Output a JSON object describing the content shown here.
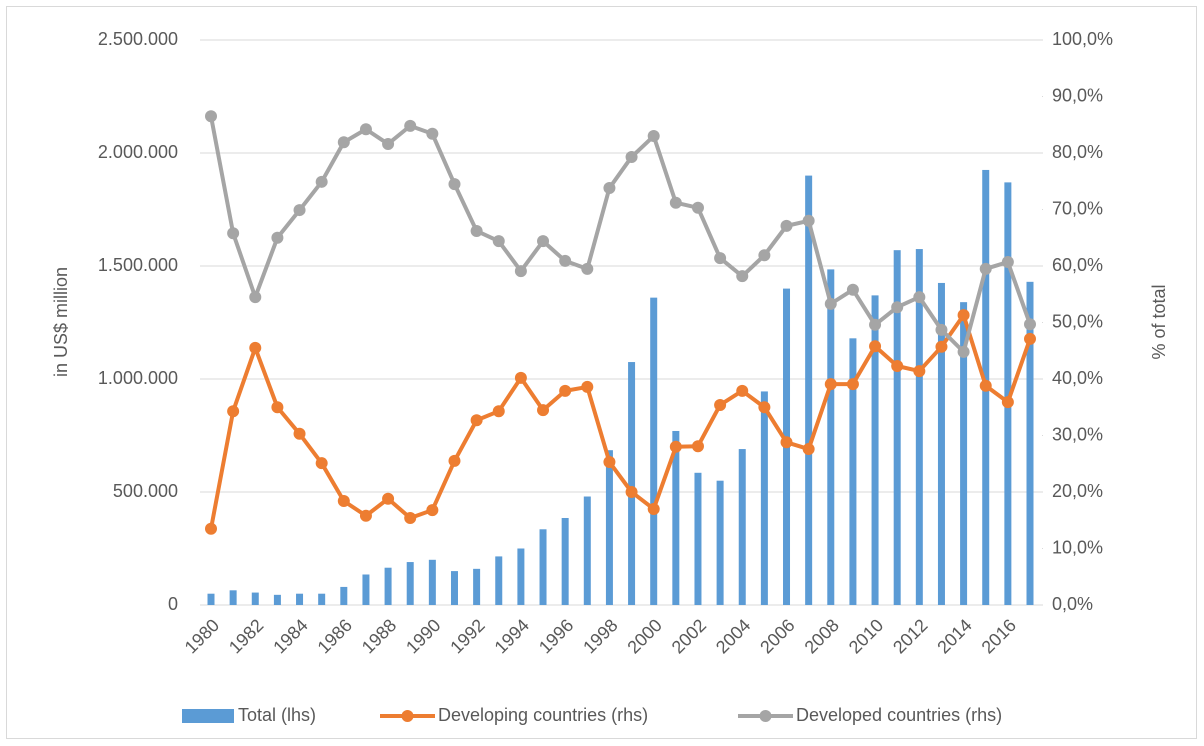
{
  "chart_data": {
    "type": "combo",
    "categories": [
      "1980",
      null,
      "1982",
      null,
      "1984",
      null,
      "1986",
      null,
      "1988",
      null,
      "1990",
      null,
      "1992",
      null,
      "1994",
      null,
      "1996",
      null,
      "1998",
      null,
      "2000",
      null,
      "2002",
      null,
      "2004",
      null,
      "2006",
      null,
      "2008",
      null,
      "2010",
      null,
      "2012",
      null,
      "2014",
      null,
      "2016",
      null
    ],
    "y_label": "in US$ million",
    "y2_label": "% of total",
    "ylim": [
      0,
      2500000
    ],
    "yticks": [
      0,
      {
        "value": 500000,
        "label": "500.000"
      },
      {
        "value": 1000000,
        "label": "1.000.000"
      },
      {
        "value": 1500000,
        "label": "1.500.000"
      },
      {
        "value": 2000000,
        "label": "2.000.000"
      },
      {
        "value": 2500000,
        "label": "2.500.000"
      }
    ],
    "y2lim": [
      0,
      100
    ],
    "y2ticks": [
      {
        "value": 0,
        "label": "0,0%"
      },
      {
        "value": 10,
        "label": "10,0%"
      },
      {
        "value": 20,
        "label": "20,0%"
      },
      {
        "value": 30,
        "label": "30,0%"
      },
      {
        "value": 40,
        "label": "40,0%"
      },
      {
        "value": 50,
        "label": "50,0%"
      },
      {
        "value": 60,
        "label": "60,0%"
      },
      {
        "value": 70,
        "label": "70,0%"
      },
      {
        "value": 80,
        "label": "80,0%"
      },
      {
        "value": 90,
        "label": "90,0%"
      },
      {
        "value": 100,
        "label": "100,0%"
      }
    ],
    "grid": true,
    "legend": "bottom",
    "series": [
      {
        "name": "Total (lhs)",
        "type": "bar",
        "axis": "y",
        "color": "#5b9bd5",
        "values": [
          50000,
          65000,
          55000,
          45000,
          50000,
          50000,
          80000,
          135000,
          165000,
          190000,
          200000,
          150000,
          160000,
          215000,
          250000,
          335000,
          385000,
          480000,
          685000,
          1075000,
          1360000,
          770000,
          585000,
          550000,
          690000,
          945000,
          1400000,
          1900000,
          1485000,
          1180000,
          1370000,
          1570000,
          1575000,
          1425000,
          1340000,
          1925000,
          1870000,
          1430000
        ]
      },
      {
        "name": "Developing countries (rhs)",
        "type": "line",
        "axis": "y2",
        "color": "#ed7d31",
        "values": [
          13.5,
          34.3,
          45.5,
          35.0,
          30.3,
          25.1,
          18.4,
          15.8,
          18.8,
          15.4,
          16.8,
          25.5,
          32.7,
          34.3,
          40.2,
          34.5,
          37.9,
          38.6,
          25.3,
          20.0,
          17.0,
          28.0,
          28.1,
          35.4,
          37.9,
          35.0,
          28.8,
          27.6,
          39.1,
          39.1,
          45.8,
          42.3,
          41.4,
          45.7,
          51.3,
          38.8,
          35.9,
          47.1
        ]
      },
      {
        "name": "Developed countries (rhs)",
        "type": "line",
        "axis": "y2",
        "color": "#a5a5a5",
        "values": [
          86.5,
          65.8,
          54.5,
          65.0,
          69.9,
          74.9,
          81.9,
          84.2,
          81.6,
          84.8,
          83.4,
          74.5,
          66.2,
          64.4,
          59.1,
          64.4,
          60.9,
          59.5,
          73.8,
          79.3,
          83.0,
          71.2,
          70.3,
          61.4,
          58.2,
          61.9,
          67.1,
          68.0,
          53.3,
          55.8,
          49.6,
          52.7,
          54.5,
          48.7,
          44.8,
          59.5,
          60.7,
          49.7
        ]
      }
    ]
  }
}
